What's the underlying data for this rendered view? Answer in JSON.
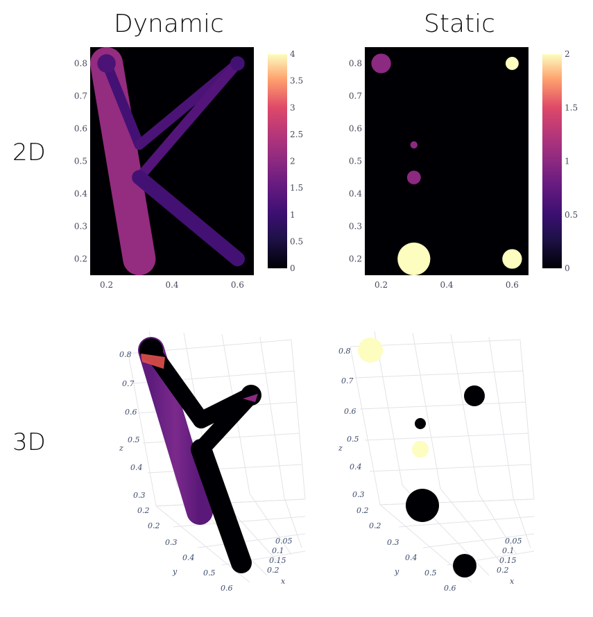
{
  "column_titles": [
    "Dynamic",
    "Static"
  ],
  "row_titles": [
    "2D",
    "3D"
  ],
  "chart_data": [
    {
      "panel": "2D Dynamic",
      "type": "heatmap",
      "xlim": [
        0.15,
        0.65
      ],
      "ylim": [
        0.15,
        0.85
      ],
      "xticks": [
        0.2,
        0.4,
        0.6
      ],
      "yticks": [
        0.2,
        0.3,
        0.4,
        0.5,
        0.6,
        0.7,
        0.8
      ],
      "colorbar": {
        "min": 0,
        "max": 4,
        "ticks": [
          0,
          0.5,
          1,
          1.5,
          2,
          2.5,
          3,
          3.5,
          4
        ],
        "colorscale": "magma"
      },
      "segments": [
        {
          "from": [
            0.2,
            0.8
          ],
          "to": [
            0.3,
            0.2
          ],
          "value": 2.1,
          "width": 0.1
        },
        {
          "from": [
            0.2,
            0.8
          ],
          "to": [
            0.3,
            0.55
          ],
          "value": 1.1,
          "width": 0.03
        },
        {
          "from": [
            0.3,
            0.55
          ],
          "to": [
            0.6,
            0.8
          ],
          "value": 1.2,
          "width": 0.03
        },
        {
          "from": [
            0.3,
            0.45
          ],
          "to": [
            0.6,
            0.8
          ],
          "value": 1.3,
          "width": 0.03
        },
        {
          "from": [
            0.3,
            0.45
          ],
          "to": [
            0.6,
            0.2
          ],
          "value": 1.1,
          "width": 0.045
        }
      ],
      "points": [
        {
          "x": 0.2,
          "y": 0.8,
          "value": 1.2,
          "r": 0.028
        },
        {
          "x": 0.6,
          "y": 0.8,
          "value": 1.1,
          "r": 0.022
        }
      ]
    },
    {
      "panel": "2D Static",
      "type": "scatter",
      "xlim": [
        0.15,
        0.65
      ],
      "ylim": [
        0.15,
        0.85
      ],
      "xticks": [
        0.2,
        0.4,
        0.6
      ],
      "yticks": [
        0.2,
        0.3,
        0.4,
        0.5,
        0.6,
        0.7,
        0.8
      ],
      "colorbar": {
        "min": 0,
        "max": 2,
        "ticks": [
          0,
          0.5,
          1,
          1.5,
          2
        ],
        "colorscale": "magma"
      },
      "points": [
        {
          "x": 0.2,
          "y": 0.8,
          "value": 1.0,
          "r": 0.03
        },
        {
          "x": 0.6,
          "y": 0.8,
          "value": 2.0,
          "r": 0.02
        },
        {
          "x": 0.3,
          "y": 0.55,
          "value": 1.0,
          "r": 0.011
        },
        {
          "x": 0.3,
          "y": 0.45,
          "value": 1.0,
          "r": 0.021
        },
        {
          "x": 0.3,
          "y": 0.2,
          "value": 2.0,
          "r": 0.05
        },
        {
          "x": 0.6,
          "y": 0.2,
          "value": 2.0,
          "r": 0.03
        }
      ]
    },
    {
      "panel": "3D Dynamic",
      "type": "scatter",
      "z_ticks": [
        0.2,
        0.3,
        0.4,
        0.5,
        0.6,
        0.7,
        0.8
      ],
      "y_ticks": [
        0.2,
        0.3,
        0.4,
        0.5,
        0.6
      ],
      "x_ticks": [
        0.05,
        0.1,
        0.15,
        0.2
      ],
      "axis_labels": {
        "x": "x",
        "y": "y",
        "z": "z"
      }
    },
    {
      "panel": "3D Static",
      "type": "scatter",
      "z_ticks": [
        0.2,
        0.3,
        0.4,
        0.5,
        0.6,
        0.7,
        0.8
      ],
      "y_ticks": [
        0.2,
        0.3,
        0.4,
        0.5,
        0.6
      ],
      "x_ticks": [
        0.05,
        0.1,
        0.15,
        0.2
      ],
      "axis_labels": {
        "x": "x",
        "y": "y",
        "z": "z"
      }
    }
  ]
}
